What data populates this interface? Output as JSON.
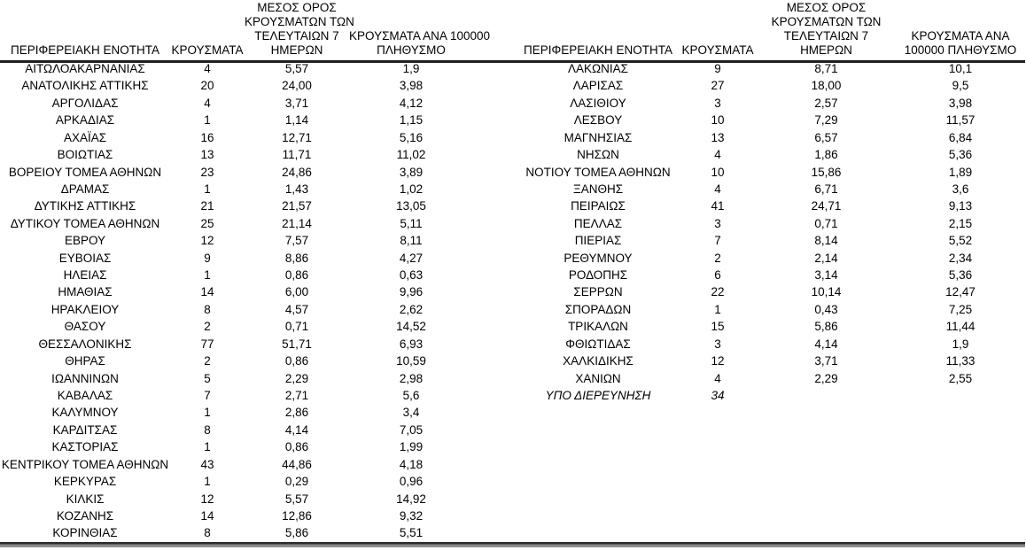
{
  "page": {
    "background_color": "#ffffff",
    "text_color": "#000000",
    "rule_color": "#1f1f1f",
    "rule_shadow_color": "#8c8c8c"
  },
  "tables": [
    {
      "id": "left",
      "headers": [
        [
          "ΠΕΡΙΦΕΡΕΙΑΚΗ ΕΝΟΤΗΤΑ"
        ],
        [
          "ΚΡΟΥΣΜΑΤΑ"
        ],
        [
          "ΜΕΣΟΣ ΟΡΟΣ",
          "ΚΡΟΥΣΜΑΤΩΝ ΤΩΝ",
          "ΤΕΛΕΥΤΑΙΩΝ 7",
          "ΗΜΕΡΩΝ"
        ],
        [
          "ΚΡΟΥΣΜΑΤΑ ΑΝΑ 100000",
          "ΠΛΗΘΥΣΜΟ"
        ]
      ],
      "rows": [
        {
          "region": "ΑΙΤΩΛΟΑΚΑΡΝΑΝΙΑΣ",
          "cases": "4",
          "avg7": "5,57",
          "per100k": "1,9"
        },
        {
          "region": "ΑΝΑΤΟΛΙΚΗΣ ΑΤΤΙΚΗΣ",
          "cases": "20",
          "avg7": "24,00",
          "per100k": "3,98"
        },
        {
          "region": "ΑΡΓΟΛΙΔΑΣ",
          "cases": "4",
          "avg7": "3,71",
          "per100k": "4,12"
        },
        {
          "region": "ΑΡΚΑΔΙΑΣ",
          "cases": "1",
          "avg7": "1,14",
          "per100k": "1,15"
        },
        {
          "region": "ΑΧΑΪΑΣ",
          "cases": "16",
          "avg7": "12,71",
          "per100k": "5,16"
        },
        {
          "region": "ΒΟΙΩΤΙΑΣ",
          "cases": "13",
          "avg7": "11,71",
          "per100k": "11,02"
        },
        {
          "region": "ΒΟΡΕΙΟΥ ΤΟΜΕΑ ΑΘΗΝΩΝ",
          "cases": "23",
          "avg7": "24,86",
          "per100k": "3,89"
        },
        {
          "region": "ΔΡΑΜΑΣ",
          "cases": "1",
          "avg7": "1,43",
          "per100k": "1,02"
        },
        {
          "region": "ΔΥΤΙΚΗΣ ΑΤΤΙΚΗΣ",
          "cases": "21",
          "avg7": "21,57",
          "per100k": "13,05"
        },
        {
          "region": "ΔΥΤΙΚΟΥ ΤΟΜΕΑ ΑΘΗΝΩΝ",
          "cases": "25",
          "avg7": "21,14",
          "per100k": "5,11"
        },
        {
          "region": "ΕΒΡΟΥ",
          "cases": "12",
          "avg7": "7,57",
          "per100k": "8,11"
        },
        {
          "region": "ΕΥΒΟΙΑΣ",
          "cases": "9",
          "avg7": "8,86",
          "per100k": "4,27"
        },
        {
          "region": "ΗΛΕΙΑΣ",
          "cases": "1",
          "avg7": "0,86",
          "per100k": "0,63"
        },
        {
          "region": "ΗΜΑΘΙΑΣ",
          "cases": "14",
          "avg7": "6,00",
          "per100k": "9,96"
        },
        {
          "region": "ΗΡΑΚΛΕΙΟΥ",
          "cases": "8",
          "avg7": "4,57",
          "per100k": "2,62"
        },
        {
          "region": "ΘΑΣΟΥ",
          "cases": "2",
          "avg7": "0,71",
          "per100k": "14,52"
        },
        {
          "region": "ΘΕΣΣΑΛΟΝΙΚΗΣ",
          "cases": "77",
          "avg7": "51,71",
          "per100k": "6,93"
        },
        {
          "region": "ΘΗΡΑΣ",
          "cases": "2",
          "avg7": "0,86",
          "per100k": "10,59"
        },
        {
          "region": "ΙΩΑΝΝΙΝΩΝ",
          "cases": "5",
          "avg7": "2,29",
          "per100k": "2,98"
        },
        {
          "region": "ΚΑΒΑΛΑΣ",
          "cases": "7",
          "avg7": "2,71",
          "per100k": "5,6"
        },
        {
          "region": "ΚΑΛΥΜΝΟΥ",
          "cases": "1",
          "avg7": "2,86",
          "per100k": "3,4"
        },
        {
          "region": "ΚΑΡΔΙΤΣΑΣ",
          "cases": "8",
          "avg7": "4,14",
          "per100k": "7,05"
        },
        {
          "region": "ΚΑΣΤΟΡΙΑΣ",
          "cases": "1",
          "avg7": "0,86",
          "per100k": "1,99"
        },
        {
          "region": "ΚΕΝΤΡΙΚΟΥ ΤΟΜΕΑ ΑΘΗΝΩΝ",
          "cases": "43",
          "avg7": "44,86",
          "per100k": "4,18"
        },
        {
          "region": "ΚΕΡΚΥΡΑΣ",
          "cases": "1",
          "avg7": "0,29",
          "per100k": "0,96"
        },
        {
          "region": "ΚΙΛΚΙΣ",
          "cases": "12",
          "avg7": "5,57",
          "per100k": "14,92"
        },
        {
          "region": "ΚΟΖΑΝΗΣ",
          "cases": "14",
          "avg7": "12,86",
          "per100k": "9,32"
        },
        {
          "region": "ΚΟΡΙΝΘΙΑΣ",
          "cases": "8",
          "avg7": "5,86",
          "per100k": "5,51"
        }
      ]
    },
    {
      "id": "right",
      "headers": [
        [
          "ΠΕΡΙΦΕΡΕΙΑΚΗ ΕΝΟΤΗΤΑ"
        ],
        [
          "ΚΡΟΥΣΜΑΤΑ"
        ],
        [
          "ΜΕΣΟΣ ΟΡΟΣ",
          "ΚΡΟΥΣΜΑΤΩΝ ΤΩΝ",
          "ΤΕΛΕΥΤΑΙΩΝ 7",
          "ΗΜΕΡΩΝ"
        ],
        [
          "ΚΡΟΥΣΜΑΤΑ ΑΝΑ",
          "100000 ΠΛΗΘΥΣΜΟ"
        ]
      ],
      "rows": [
        {
          "region": "ΛΑΚΩΝΙΑΣ",
          "cases": "9",
          "avg7": "8,71",
          "per100k": "10,1"
        },
        {
          "region": "ΛΑΡΙΣΑΣ",
          "cases": "27",
          "avg7": "18,00",
          "per100k": "9,5"
        },
        {
          "region": "ΛΑΣΙΘΙΟΥ",
          "cases": "3",
          "avg7": "2,57",
          "per100k": "3,98"
        },
        {
          "region": "ΛΕΣΒΟΥ",
          "cases": "10",
          "avg7": "7,29",
          "per100k": "11,57"
        },
        {
          "region": "ΜΑΓΝΗΣΙΑΣ",
          "cases": "13",
          "avg7": "6,57",
          "per100k": "6,84"
        },
        {
          "region": "ΝΗΣΩΝ",
          "cases": "4",
          "avg7": "1,86",
          "per100k": "5,36"
        },
        {
          "region": "ΝΟΤΙΟΥ ΤΟΜΕΑ ΑΘΗΝΩΝ",
          "cases": "10",
          "avg7": "15,86",
          "per100k": "1,89"
        },
        {
          "region": "ΞΑΝΘΗΣ",
          "cases": "4",
          "avg7": "6,71",
          "per100k": "3,6"
        },
        {
          "region": "ΠΕΙΡΑΙΩΣ",
          "cases": "41",
          "avg7": "24,71",
          "per100k": "9,13"
        },
        {
          "region": "ΠΕΛΛΑΣ",
          "cases": "3",
          "avg7": "0,71",
          "per100k": "2,15"
        },
        {
          "region": "ΠΙΕΡΙΑΣ",
          "cases": "7",
          "avg7": "8,14",
          "per100k": "5,52"
        },
        {
          "region": "ΡΕΘΥΜΝΟΥ",
          "cases": "2",
          "avg7": "2,14",
          "per100k": "2,34"
        },
        {
          "region": "ΡΟΔΟΠΗΣ",
          "cases": "6",
          "avg7": "3,14",
          "per100k": "5,36"
        },
        {
          "region": "ΣΕΡΡΩΝ",
          "cases": "22",
          "avg7": "10,14",
          "per100k": "12,47"
        },
        {
          "region": "ΣΠΟΡΑΔΩΝ",
          "cases": "1",
          "avg7": "0,43",
          "per100k": "7,25"
        },
        {
          "region": "ΤΡΙΚΑΛΩΝ",
          "cases": "15",
          "avg7": "5,86",
          "per100k": "11,44"
        },
        {
          "region": "ΦΘΙΩΤΙΔΑΣ",
          "cases": "3",
          "avg7": "4,14",
          "per100k": "1,9"
        },
        {
          "region": "ΧΑΛΚΙΔΙΚΗΣ",
          "cases": "12",
          "avg7": "3,71",
          "per100k": "11,33"
        },
        {
          "region": "ΧΑΝΙΩΝ",
          "cases": "4",
          "avg7": "2,29",
          "per100k": "2,55"
        },
        {
          "region": "ΥΠΟ ΔΙΕΡΕΥΝΗΣΗ",
          "cases": "34",
          "avg7": "",
          "per100k": "",
          "italic": true
        }
      ]
    }
  ]
}
